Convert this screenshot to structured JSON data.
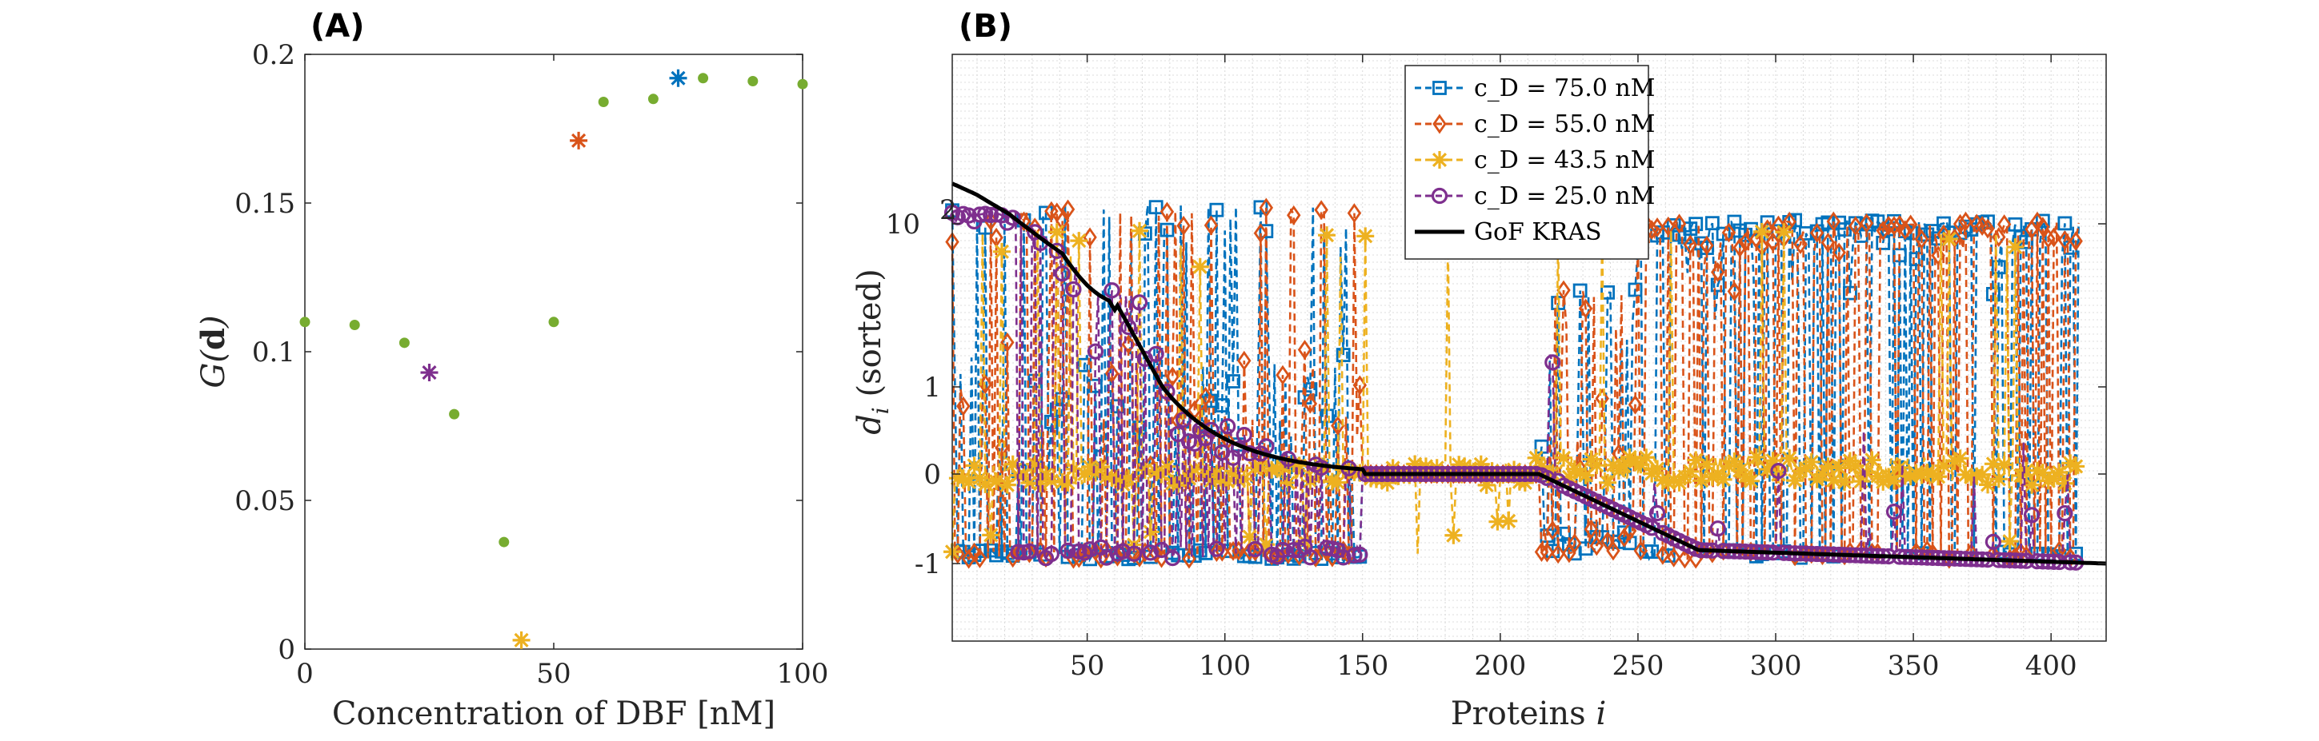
{
  "panels": {
    "a": {
      "label": "(A)"
    },
    "b": {
      "label": "(B)"
    }
  },
  "chart_data": [
    {
      "type": "scatter",
      "title": "",
      "xlabel": "Concentration of DBF [nM]",
      "ylabel": "G(d)",
      "xlim": [
        0,
        100
      ],
      "ylim": [
        0,
        0.2
      ],
      "xticks": [
        "0",
        "50",
        "100"
      ],
      "yticks": [
        "0",
        "0.05",
        "0.1",
        "0.15",
        "0.2"
      ],
      "grid": false,
      "series": [
        {
          "marker": "dot",
          "color": "#77ac30",
          "points": [
            [
              0,
              0.11
            ],
            [
              10,
              0.109
            ],
            [
              20,
              0.103
            ],
            [
              30,
              0.079
            ],
            [
              40,
              0.036
            ],
            [
              50,
              0.11
            ],
            [
              60,
              0.184
            ],
            [
              70,
              0.185
            ],
            [
              80,
              0.192
            ],
            [
              90,
              0.191
            ],
            [
              100,
              0.19
            ]
          ]
        },
        {
          "marker": "star",
          "color": "#0072bd",
          "points": [
            [
              75,
              0.192
            ]
          ]
        },
        {
          "marker": "star",
          "color": "#d95319",
          "points": [
            [
              55,
              0.171
            ]
          ]
        },
        {
          "marker": "star",
          "color": "#edb120",
          "points": [
            [
              43.5,
              0.003
            ]
          ]
        },
        {
          "marker": "star",
          "color": "#7e2f8e",
          "points": [
            [
              25,
              0.093
            ]
          ]
        }
      ]
    },
    {
      "type": "line",
      "title": "",
      "xlabel": "Proteins i",
      "ylabel": "d_i (sorted)",
      "xlim": [
        1,
        420
      ],
      "xticks": [
        "50",
        "100",
        "150",
        "200",
        "250",
        "300",
        "350",
        "400"
      ],
      "yticks": [
        "-1",
        "0",
        "1",
        "10^2"
      ],
      "yscale": "symmetric-log",
      "grid": true,
      "legend_position": "top-center",
      "legend": [
        "c_D = 75.0 nM",
        "c_D = 55.0 nM",
        "c_D = 43.5 nM",
        "c_D = 25.0 nM",
        "GoF KRAS"
      ],
      "series": [
        {
          "name": "c_D = 75.0 nM",
          "color": "#0072bd",
          "marker": "square",
          "dashed": true
        },
        {
          "name": "c_D = 55.0 nM",
          "color": "#d95319",
          "marker": "diamond",
          "dashed": true
        },
        {
          "name": "c_D = 43.5 nM",
          "color": "#edb120",
          "marker": "star",
          "dashed": true
        },
        {
          "name": "c_D = 25.0 nM",
          "color": "#7e2f8e",
          "marker": "circle",
          "dashed": true
        },
        {
          "name": "GoF KRAS",
          "color": "#000000",
          "marker": "none",
          "dashed": false
        }
      ]
    }
  ]
}
